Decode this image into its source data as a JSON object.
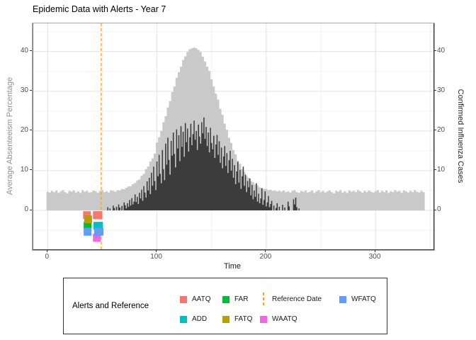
{
  "title": "Epidemic Data with Alerts - Year 7",
  "axes": {
    "x": {
      "label": "Time",
      "tick_labels": [
        "0",
        "100",
        "200",
        "300"
      ]
    },
    "y_left": {
      "label": "Average Absenteeism Percentage",
      "tick_labels": [
        "0",
        "10",
        "20",
        "30",
        "40"
      ]
    },
    "y_right": {
      "label": "Confirmed Influenza Cases",
      "tick_labels": [
        "0",
        "10",
        "20",
        "30",
        "40"
      ]
    }
  },
  "legend": {
    "title": "Alerts and Reference",
    "entries": [
      {
        "label": "AATQ",
        "key": "square",
        "color": "#F8766D",
        "col": 0,
        "row": 0
      },
      {
        "label": "ADD",
        "key": "square",
        "color": "#00BFC4",
        "col": 0,
        "row": 1
      },
      {
        "label": "FAR",
        "key": "square",
        "color": "#00BA38",
        "col": 1,
        "row": 0
      },
      {
        "label": "FATQ",
        "key": "square",
        "color": "#B79F00",
        "col": 1,
        "row": 1
      },
      {
        "label": "Reference Date",
        "key": "dashed-line",
        "color": "#FFA500",
        "col": 2,
        "row": 0
      },
      {
        "label": "WAATQ",
        "key": "square",
        "color": "#F564E3",
        "col": 2,
        "row": 1
      },
      {
        "label": "WFATQ",
        "key": "square",
        "color": "#619CFF",
        "col": 3,
        "row": 0
      }
    ]
  },
  "chart_data": {
    "type": "area",
    "title": "Epidemic Data with Alerts - Year 7",
    "xlabel": "Time",
    "ylabel_left": "Average Absenteeism Percentage",
    "ylabel_right": "Confirmed Influenza Cases",
    "xlim": [
      -13.8,
      353.7
    ],
    "ylim": [
      -10,
      47.1
    ],
    "x_breaks": [
      0,
      100,
      200,
      300
    ],
    "x_minor": [
      50,
      150,
      250,
      350
    ],
    "y_breaks": [
      0,
      10,
      20,
      30,
      40
    ],
    "y_minor": [
      -5,
      5,
      15,
      25,
      35,
      45
    ],
    "grid": true,
    "legend_position": "bottom",
    "reference_date": 49,
    "reference_color": "#FFA500",
    "series": [
      {
        "name": "absenteeism_percentage",
        "style": "step-area",
        "color": "#c9c9c9",
        "x_start": 0,
        "x_step": 2,
        "values": [
          4.7,
          4.5,
          4.9,
          4.6,
          5.0,
          4.4,
          4.8,
          5.1,
          4.6,
          4.3,
          4.9,
          4.7,
          5.0,
          4.5,
          4.8,
          4.4,
          5.1,
          4.7,
          4.9,
          4.5,
          4.6,
          5.0,
          4.8,
          4.4,
          4.9,
          5.1,
          4.6,
          4.8,
          4.5,
          5.0,
          4.9,
          4.7,
          5.1,
          5.0,
          5.4,
          5.3,
          5.7,
          6.0,
          6.1,
          6.6,
          6.9,
          7.5,
          7.8,
          8.7,
          9.2,
          10.4,
          11.0,
          12.3,
          13.1,
          14.3,
          17.1,
          18.4,
          20.0,
          22.2,
          23.7,
          25.9,
          27.5,
          29.8,
          31.2,
          33.4,
          34.8,
          36.2,
          37.9,
          38.8,
          39.9,
          40.6,
          40.8,
          41.0,
          40.8,
          40.4,
          39.9,
          38.7,
          37.5,
          36.2,
          35.1,
          33.0,
          31.2,
          29.4,
          27.9,
          25.6,
          24.1,
          21.8,
          20.3,
          18.3,
          17.0,
          15.2,
          14.1,
          12.5,
          11.7,
          10.4,
          9.7,
          8.7,
          8.2,
          7.4,
          7.1,
          6.5,
          6.3,
          5.8,
          5.6,
          5.4,
          5.4,
          5.1,
          5.2,
          4.9,
          5.0,
          4.8,
          4.9,
          4.7,
          5.0,
          4.6,
          4.8,
          4.5,
          4.9,
          5.1,
          4.6,
          4.4,
          4.9,
          4.7,
          5.0,
          4.5,
          4.7,
          5.0,
          4.4,
          4.8,
          5.1,
          4.6,
          4.9,
          4.5,
          4.8,
          5.0,
          4.6,
          4.3,
          4.9,
          4.7,
          5.1,
          4.5,
          4.8,
          4.4,
          5.0,
          4.7,
          4.9,
          4.6,
          5.1,
          4.8,
          4.4,
          4.9,
          4.6,
          5.0,
          4.7,
          4.5,
          4.8,
          5.1,
          4.5,
          4.9,
          4.6,
          5.0,
          4.4,
          4.8,
          4.6,
          5.1,
          4.7,
          4.9,
          4.4,
          5.0,
          4.8,
          4.5,
          4.9,
          4.6,
          5.1,
          4.7,
          4.5,
          4.9,
          4.6
        ]
      },
      {
        "name": "confirmed_influenza_cases",
        "style": "step-area",
        "color": "#3c3c3c",
        "x_start": 55,
        "x_step": 1,
        "values": [
          0.8,
          0,
          0.5,
          0,
          0,
          1.2,
          0.6,
          0,
          0.9,
          0,
          1.5,
          0.7,
          0,
          1.1,
          0,
          2.0,
          1.3,
          0.5,
          1.8,
          0.9,
          2.6,
          1.2,
          3.1,
          1.5,
          2.2,
          4.0,
          2.1,
          3.4,
          1.6,
          4.4,
          3.0,
          5.2,
          2.4,
          6.1,
          4.5,
          3.2,
          7.3,
          5.0,
          8.2,
          4.1,
          9.5,
          6.2,
          11.0,
          7.4,
          5.1,
          12.3,
          8.6,
          14.0,
          9.2,
          6.8,
          15.2,
          10.4,
          7.6,
          16.8,
          11.5,
          18.3,
          12.7,
          9.0,
          17.5,
          13.8,
          19.6,
          14.2,
          10.8,
          20.4,
          15.6,
          18.9,
          12.4,
          21.2,
          16.0,
          19.8,
          13.5,
          22.0,
          17.2,
          20.6,
          14.8,
          18.4,
          21.8,
          16.4,
          19.2,
          22.6,
          17.8,
          20.0,
          15.2,
          21.6,
          18.6,
          16.8,
          22.2,
          19.4,
          23.4,
          18.0,
          21.0,
          16.2,
          19.6,
          14.6,
          20.8,
          17.0,
          15.4,
          18.8,
          13.2,
          16.6,
          19.0,
          14.0,
          17.4,
          12.0,
          15.8,
          10.6,
          13.6,
          16.2,
          11.2,
          14.4,
          9.4,
          12.6,
          15.0,
          10.0,
          13.0,
          8.2,
          11.4,
          6.6,
          9.8,
          12.2,
          7.0,
          10.2,
          5.4,
          8.6,
          11.0,
          6.2,
          9.0,
          4.6,
          7.4,
          5.8,
          8.0,
          3.8,
          6.4,
          2.8,
          5.0,
          3.4,
          6.8,
          2.2,
          4.2,
          1.8,
          3.0,
          5.6,
          1.4,
          2.6,
          4.8,
          1.0,
          2.0,
          3.6,
          0.8,
          1.6,
          2.4,
          0,
          1.2,
          0,
          0.6,
          1.8,
          0,
          0.9,
          0,
          0,
          1.4,
          0,
          0.7,
          0,
          0,
          2.2,
          1.0,
          0,
          0,
          0,
          2.8,
          1.5,
          3.2,
          0.8,
          0,
          0.5
        ]
      }
    ],
    "alerts": [
      {
        "name": "AATQ",
        "color": "#F8766D",
        "level": -1.2,
        "times": [
          36,
          45,
          46.5
        ]
      },
      {
        "name": "ADD",
        "color": "#00BFC4",
        "level": -3.9,
        "times": [
          45.5,
          47
        ]
      },
      {
        "name": "FAR",
        "color": "#00BA38",
        "level": -3.8,
        "times": [
          36.5
        ]
      },
      {
        "name": "FATQ",
        "color": "#B79F00",
        "level": -2.3,
        "times": [
          37
        ]
      },
      {
        "name": "WAATQ",
        "color": "#F564E3",
        "level": -6.9,
        "times": [
          45
        ]
      },
      {
        "name": "WFATQ",
        "color": "#619CFF",
        "level": -5.4,
        "times": [
          36.5,
          46,
          47.5
        ]
      }
    ]
  }
}
